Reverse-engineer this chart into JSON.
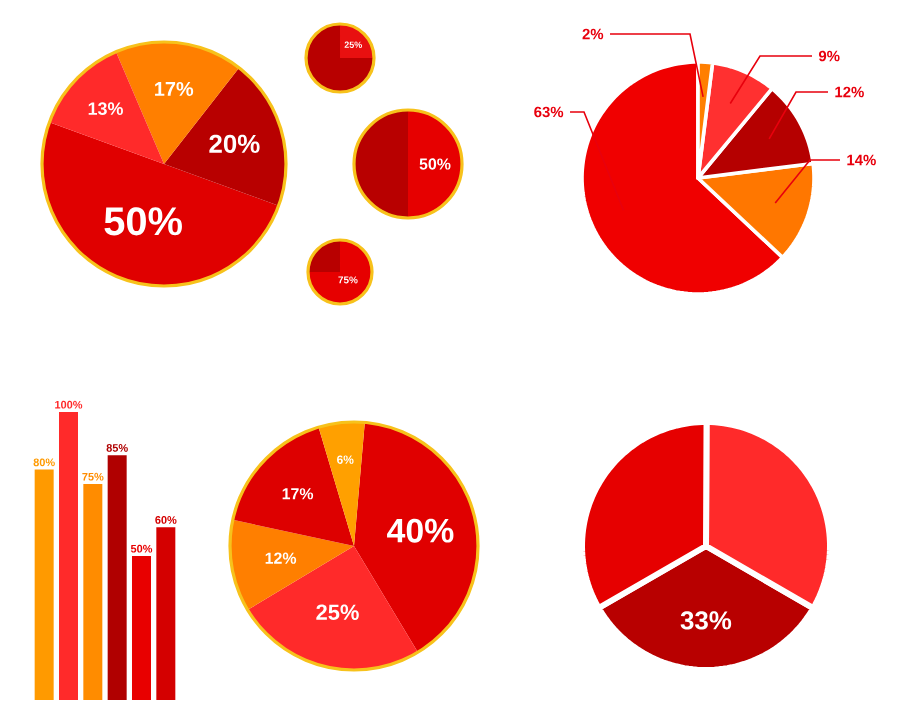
{
  "chart_data": [
    {
      "type": "pie",
      "categories": [
        null,
        null,
        null,
        null
      ],
      "values": [
        50,
        20,
        17,
        13
      ],
      "colors": [
        "#e00000",
        "#b80000",
        "#ff7f00",
        "#ff2a2a"
      ],
      "value_labels": [
        "50%",
        "20%",
        "17%",
        "13%"
      ]
    },
    {
      "type": "pie",
      "categories": [
        null,
        null
      ],
      "values": [
        25,
        75
      ],
      "colors": [
        "#e81010",
        "#b80000"
      ],
      "value_labels": [
        "25%",
        null
      ]
    },
    {
      "type": "pie",
      "categories": [
        null,
        null
      ],
      "values": [
        50,
        50
      ],
      "colors": [
        "#e60000",
        "#b80000"
      ],
      "value_labels": [
        "50%",
        null
      ]
    },
    {
      "type": "pie",
      "categories": [
        null,
        null
      ],
      "values": [
        75,
        25
      ],
      "colors": [
        "#e60000",
        "#b80000"
      ],
      "value_labels": [
        "75%",
        null
      ]
    },
    {
      "type": "pie",
      "categories": [
        null,
        null,
        null,
        null,
        null
      ],
      "values": [
        63,
        14,
        12,
        9,
        2
      ],
      "colors": [
        "#f00000",
        "#ff7700",
        "#b50000",
        "#ff3030",
        "#ff7f00"
      ],
      "value_labels": [
        "63%",
        "14%",
        "12%",
        "9%",
        "2%"
      ]
    },
    {
      "type": "bar",
      "categories": [
        null,
        null,
        null,
        null,
        null,
        null
      ],
      "values": [
        80,
        100,
        75,
        85,
        50,
        60
      ],
      "colors": [
        "#ff9a00",
        "#ff2a2a",
        "#ff8c00",
        "#b00000",
        "#e80000",
        "#d40000"
      ],
      "value_labels": [
        "80%",
        "100%",
        "75%",
        "85%",
        "50%",
        "60%"
      ]
    },
    {
      "type": "pie",
      "categories": [
        null,
        null,
        null,
        null,
        null
      ],
      "values": [
        40,
        25,
        12,
        17,
        6
      ],
      "colors": [
        "#e00000",
        "#ff2a2a",
        "#ff7f00",
        "#dd0000",
        "#ffa000"
      ],
      "value_labels": [
        "40%",
        "25%",
        "12%",
        "17%",
        "6%"
      ]
    },
    {
      "type": "pie",
      "categories": [
        null,
        null,
        null
      ],
      "values": [
        33.3,
        33.3,
        33.4
      ],
      "colors": [
        "#b80000",
        "#ff2a2a",
        "#e60000"
      ],
      "value_labels": [
        "33%",
        null,
        null
      ]
    }
  ]
}
